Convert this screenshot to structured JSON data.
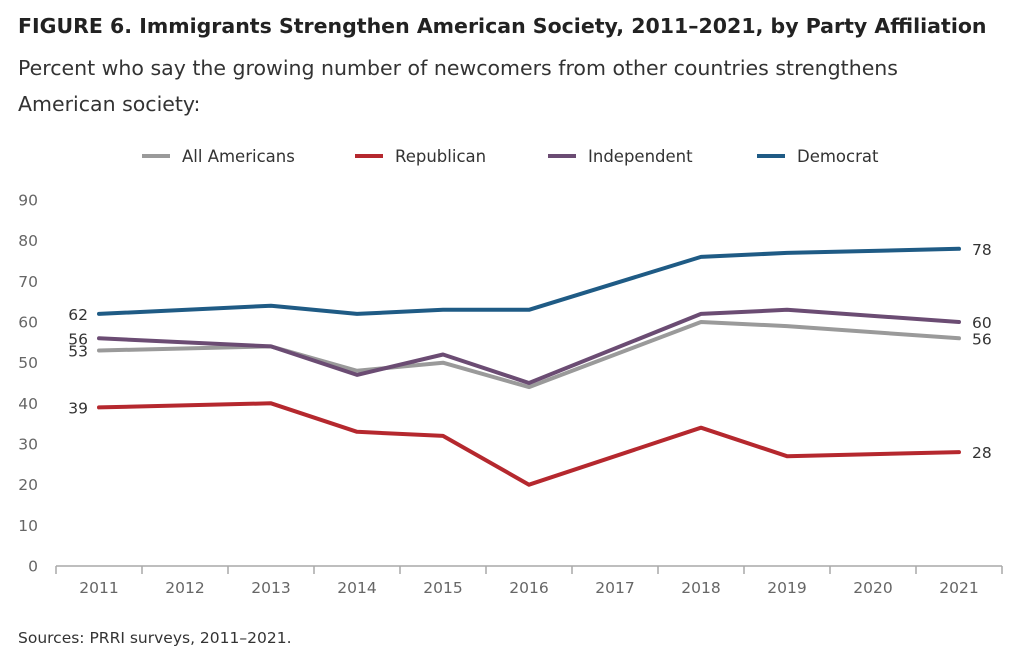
{
  "figure": {
    "title": "FIGURE 6. Immigrants Strengthen American Society, 2011–2021, by Party Affiliation",
    "subtitle": "Percent who say the growing number of newcomers from other countries strengthens American society:",
    "source": "Sources: PRRI surveys, 2011–2021."
  },
  "chart_data": {
    "type": "line",
    "title": "FIGURE 6. Immigrants Strengthen American Society, 2011–2021, by Party Affiliation",
    "subtitle": "Percent who say the growing number of newcomers from other countries strengthens American society:",
    "xlabel": "",
    "ylabel": "",
    "categories": [
      "2011",
      "2012",
      "2013",
      "2014",
      "2015",
      "2016",
      "2017",
      "2018",
      "2019",
      "2020",
      "2021"
    ],
    "ylim": [
      0,
      90
    ],
    "yticks": [
      0,
      10,
      20,
      30,
      40,
      50,
      60,
      70,
      80,
      90
    ],
    "grid": false,
    "legend": "top",
    "series": [
      {
        "name": "All Americans",
        "color": "#9a9a9a",
        "values": [
          53,
          null,
          54,
          48,
          50,
          44,
          null,
          60,
          59,
          null,
          56
        ],
        "labels": {
          "0": "53",
          "10": "56"
        }
      },
      {
        "name": "Republican",
        "color": "#b5282e",
        "values": [
          39,
          null,
          40,
          33,
          32,
          20,
          null,
          34,
          27,
          null,
          28
        ],
        "labels": {
          "0": "39",
          "10": "28"
        }
      },
      {
        "name": "Independent",
        "color": "#6b4c73",
        "values": [
          56,
          null,
          54,
          47,
          52,
          45,
          null,
          62,
          63,
          null,
          60
        ],
        "labels": {
          "0": "56",
          "10": "60"
        }
      },
      {
        "name": "Democrat",
        "color": "#1f5b85",
        "values": [
          62,
          null,
          64,
          62,
          63,
          63,
          null,
          76,
          77,
          null,
          78
        ],
        "labels": {
          "0": "62",
          "10": "78"
        }
      }
    ]
  }
}
